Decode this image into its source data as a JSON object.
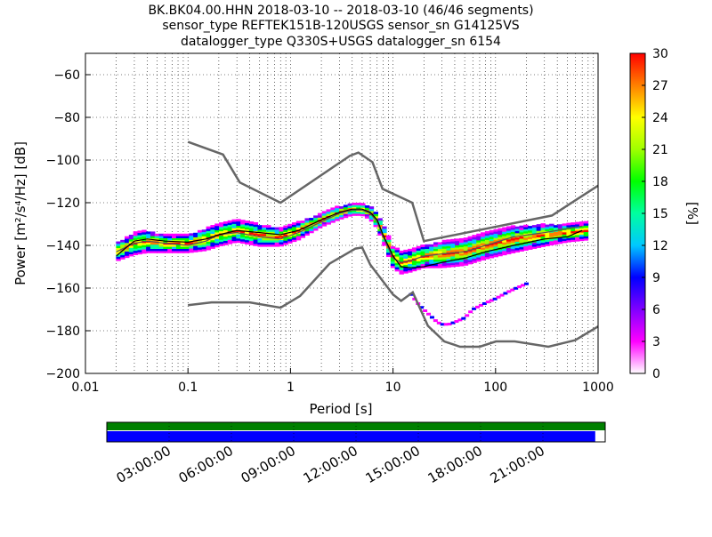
{
  "title_lines": [
    "BK.BK04.00.HHN   2018-03-10 -- 2018-03-10  (46/46 segments)",
    "sensor_type REFTEK151B-120USGS sensor_sn G14125VS",
    "datalogger_type Q330S+USGS datalogger_sn 6154"
  ],
  "colorbar": {
    "label": "[%]",
    "ticks": [
      "0",
      "3",
      "6",
      "9",
      "12",
      "15",
      "18",
      "21",
      "24",
      "27",
      "30"
    ],
    "colors": [
      "#ffffff",
      "#ff00ff",
      "#8000ff",
      "#0000ff",
      "#00c8ff",
      "#00ffa0",
      "#00ff00",
      "#a0ff00",
      "#ffff00",
      "#ff8000",
      "#ff0000"
    ]
  },
  "timeline": {
    "ticks": [
      "03:00:00",
      "06:00:00",
      "09:00:00",
      "12:00:00",
      "15:00:00",
      "18:00:00",
      "21:00:00"
    ],
    "top_bar_color": "#008000",
    "bottom_bar_color": "#0000ff",
    "bottom_bar_coverage": 0.98
  },
  "chart_data": {
    "type": "heatmap",
    "xlabel": "Period [s]",
    "ylabel": "Power [m²/s⁴/Hz] [dB]",
    "x_scale": "log",
    "xlim": [
      0.01,
      1000
    ],
    "ylim": [
      -200,
      -50
    ],
    "x_ticks": [
      {
        "v": 0.01,
        "label": "0.01"
      },
      {
        "v": 0.1,
        "label": "0.1"
      },
      {
        "v": 1,
        "label": "1"
      },
      {
        "v": 10,
        "label": "10"
      },
      {
        "v": 100,
        "label": "100"
      },
      {
        "v": 1000,
        "label": "1000"
      }
    ],
    "y_ticks": [
      {
        "v": -60,
        "label": "−60"
      },
      {
        "v": -80,
        "label": "−80"
      },
      {
        "v": -100,
        "label": "−100"
      },
      {
        "v": -120,
        "label": "−120"
      },
      {
        "v": -140,
        "label": "−140"
      },
      {
        "v": -160,
        "label": "−160"
      },
      {
        "v": -180,
        "label": "−180"
      },
      {
        "v": -200,
        "label": "−200"
      }
    ],
    "grid": true,
    "noise_model_high": {
      "x": [
        0.1,
        0.22,
        0.32,
        0.8,
        3.8,
        4.6,
        6.3,
        7.9,
        15.4,
        20,
        354.8,
        1000
      ],
      "y": [
        -91.5,
        -97.4,
        -110.5,
        -120,
        -98,
        -96.5,
        -101,
        -113.5,
        -120,
        -138,
        -126,
        -112
      ]
    },
    "noise_model_low": {
      "x": [
        0.1,
        0.17,
        0.4,
        0.8,
        1.24,
        2.4,
        4.3,
        5.0,
        6.0,
        10,
        12,
        15.6,
        21.9,
        31.6,
        45,
        70,
        101,
        154,
        328,
        600,
        1000
      ],
      "y": [
        -168,
        -166.7,
        -166.7,
        -169.2,
        -163.7,
        -148.6,
        -141.5,
        -141,
        -149,
        -163,
        -166,
        -162,
        -177.7,
        -185,
        -187.5,
        -187.5,
        -185,
        -185,
        -187.5,
        -184.4,
        -178
      ]
    },
    "mean_curve": {
      "x": [
        0.02,
        0.025,
        0.03,
        0.04,
        0.06,
        0.1,
        0.15,
        0.2,
        0.3,
        0.5,
        0.8,
        1.2,
        2,
        3,
        4,
        5,
        6,
        7,
        8,
        10,
        12,
        15,
        20,
        30,
        50,
        80,
        150,
        300,
        500,
        700
      ],
      "y": [
        -145,
        -141,
        -138,
        -137,
        -138,
        -138.5,
        -137,
        -135,
        -133,
        -134,
        -135,
        -133,
        -128,
        -124.5,
        -123,
        -123,
        -124.5,
        -128,
        -135,
        -145,
        -150,
        -150.5,
        -150,
        -148,
        -146,
        -143,
        -140,
        -137,
        -136,
        -133
      ]
    },
    "mode_curve": {
      "x": [
        0.02,
        0.03,
        0.04,
        0.06,
        0.1,
        0.15,
        0.2,
        0.3,
        0.5,
        0.8,
        1.2,
        2,
        3,
        4,
        5,
        6,
        7,
        8,
        10,
        12,
        15,
        20,
        30,
        50,
        80,
        150,
        300,
        700
      ],
      "y": [
        -143,
        -139,
        -138,
        -139,
        -140,
        -138,
        -135,
        -134,
        -136,
        -137,
        -134,
        -129,
        -125,
        -123.5,
        -123.5,
        -125,
        -129,
        -136,
        -146,
        -148,
        -147,
        -145,
        -144,
        -143,
        -140,
        -136,
        -134,
        -131
      ]
    },
    "density_band": {
      "x": [
        0.02,
        0.03,
        0.04,
        0.06,
        0.1,
        0.15,
        0.2,
        0.3,
        0.5,
        0.8,
        1.2,
        2,
        3,
        4,
        5,
        6,
        7,
        8,
        10,
        12,
        15,
        20,
        30,
        50,
        80,
        150,
        300,
        500,
        800
      ],
      "center": [
        -143,
        -139,
        -138,
        -139,
        -139,
        -137,
        -135,
        -133,
        -135,
        -136,
        -133,
        -128,
        -124.5,
        -123,
        -123,
        -124.5,
        -128,
        -134,
        -145,
        -148,
        -147,
        -145,
        -144,
        -143,
        -140,
        -137,
        -135,
        -134,
        -133
      ],
      "half_width": [
        3,
        4,
        4,
        3,
        3,
        4,
        4,
        4,
        4,
        3,
        3,
        2,
        2,
        1.5,
        1.5,
        2,
        2.5,
        3,
        4,
        4,
        4,
        4,
        5,
        5,
        5,
        5,
        4,
        3,
        3
      ]
    },
    "sparse_tail": {
      "x": [
        15,
        18,
        22,
        27,
        30,
        35,
        40,
        50,
        60,
        80,
        100,
        130,
        160,
        200
      ],
      "y": [
        -163,
        -168,
        -172,
        -176,
        -177,
        -177,
        -176,
        -174,
        -170,
        -167,
        -165,
        -162,
        -160,
        -158
      ]
    }
  }
}
